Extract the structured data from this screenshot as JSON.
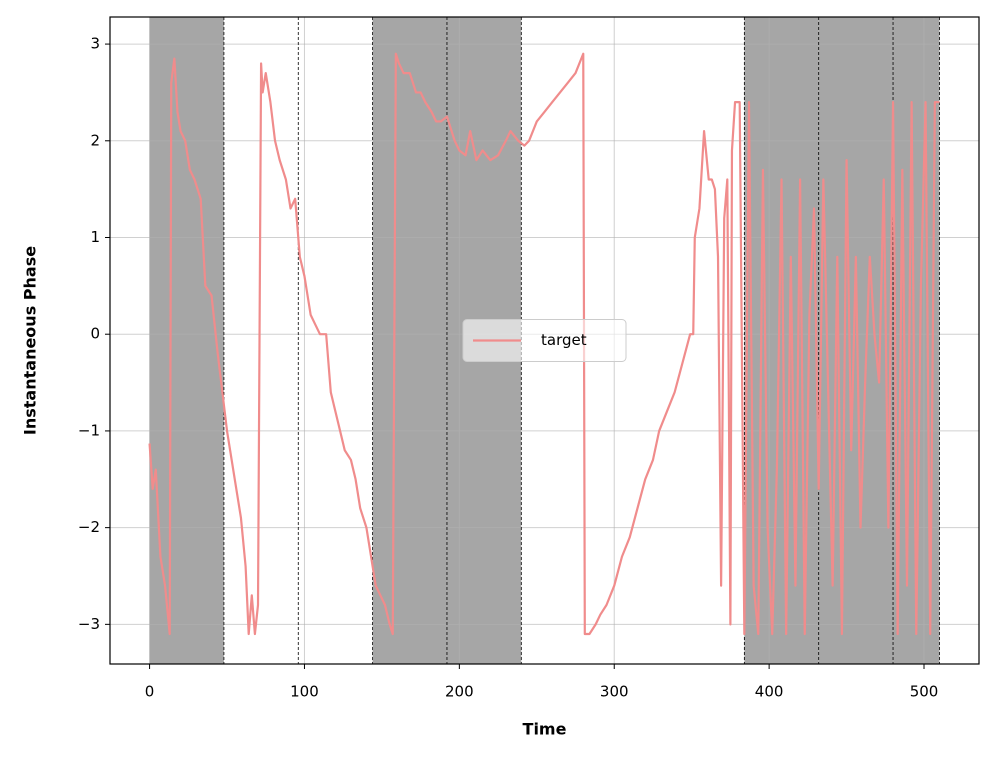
{
  "chart_data": {
    "type": "line",
    "xlabel": "Time",
    "ylabel": "Instantaneous Phase",
    "xlim": [
      -25.55,
      535.5
    ],
    "ylim": [
      -3.41,
      3.28
    ],
    "xticks": [
      0,
      100,
      200,
      300,
      400,
      500
    ],
    "yticks": [
      {
        "value": -3,
        "label": "−3"
      },
      {
        "value": -2,
        "label": "−2"
      },
      {
        "value": -1,
        "label": "−1"
      },
      0,
      1,
      2,
      3
    ],
    "grid": true,
    "legend": "center",
    "shaded_spans": [
      [
        0,
        48
      ],
      [
        144,
        192
      ],
      [
        192,
        240
      ],
      [
        384,
        432
      ],
      [
        432,
        480
      ],
      [
        480,
        510
      ]
    ],
    "shade_color": "#a6a6a6",
    "vlines": [
      48,
      96,
      144,
      192,
      240,
      384,
      432,
      480,
      510
    ],
    "x": [
      0,
      2,
      4,
      7,
      10,
      13,
      14,
      16,
      18,
      20,
      23,
      26,
      29,
      33,
      36,
      40,
      44,
      47,
      50,
      52,
      55,
      59,
      62,
      64,
      66,
      68,
      70,
      72,
      73,
      75,
      78,
      81,
      84,
      88,
      91,
      94,
      97,
      100,
      104,
      107,
      110,
      114,
      117,
      120,
      123,
      126,
      130,
      133,
      136,
      140,
      142,
      146,
      149,
      152,
      155,
      157,
      159,
      161,
      164,
      168,
      172,
      175,
      178,
      182,
      185,
      188,
      192,
      197,
      200,
      204,
      207,
      211,
      215,
      220,
      225,
      230,
      233,
      238,
      242,
      245,
      250,
      255,
      260,
      265,
      270,
      275,
      280,
      281,
      284,
      288,
      291,
      295,
      300,
      305,
      310,
      315,
      320,
      325,
      329,
      334,
      339,
      344,
      349,
      351,
      352,
      355,
      358,
      361,
      363,
      365,
      367,
      369,
      371,
      373,
      375,
      376,
      378,
      379,
      381,
      384,
      387,
      390,
      393,
      396,
      399,
      402,
      405,
      408,
      411,
      414,
      417,
      420,
      423,
      426,
      429,
      432,
      435,
      438,
      441,
      444,
      447,
      450,
      453,
      456,
      459,
      462,
      465,
      468,
      471,
      474,
      477,
      480,
      483,
      486,
      489,
      492,
      495,
      498,
      501,
      504,
      507,
      510
    ],
    "series": [
      {
        "name": "target",
        "color": "#f08c8c",
        "values": [
          -1.13,
          -1.6,
          -1.4,
          -2.3,
          -2.6,
          -3.1,
          2.6,
          2.85,
          2.3,
          2.1,
          2.0,
          1.7,
          1.6,
          1.4,
          0.5,
          0.4,
          -0.2,
          -0.6,
          -1.0,
          -1.2,
          -1.5,
          -1.9,
          -2.4,
          -3.1,
          -2.7,
          -3.1,
          -2.8,
          2.8,
          2.5,
          2.7,
          2.4,
          2.0,
          1.8,
          1.6,
          1.3,
          1.4,
          0.8,
          0.6,
          0.2,
          0.1,
          0.0,
          0.0,
          -0.6,
          -0.8,
          -1.0,
          -1.2,
          -1.3,
          -1.5,
          -1.8,
          -2.0,
          -2.2,
          -2.6,
          -2.7,
          -2.8,
          -3.0,
          -3.1,
          2.9,
          2.8,
          2.7,
          2.7,
          2.5,
          2.5,
          2.4,
          2.3,
          2.2,
          2.2,
          2.25,
          2.0,
          1.9,
          1.85,
          2.1,
          1.8,
          1.9,
          1.8,
          1.85,
          2.0,
          2.1,
          2.0,
          1.95,
          2.0,
          2.2,
          2.3,
          2.4,
          2.5,
          2.6,
          2.7,
          2.9,
          -3.1,
          -3.1,
          -3.0,
          -2.9,
          -2.8,
          -2.6,
          -2.3,
          -2.1,
          -1.8,
          -1.5,
          -1.3,
          -1.0,
          -0.8,
          -0.6,
          -0.3,
          0.0,
          0.0,
          1.0,
          1.3,
          2.1,
          1.6,
          1.6,
          1.5,
          0.8,
          -2.6,
          1.2,
          1.6,
          -3.0,
          1.9,
          2.4,
          2.4,
          2.4,
          -3.1,
          2.4,
          -2.6,
          -3.1,
          1.7,
          -2.0,
          -3.1,
          -1.4,
          1.6,
          -3.1,
          0.8,
          -2.6,
          1.6,
          -3.1,
          0.2,
          1.3,
          -1.6,
          1.6,
          -0.5,
          -2.6,
          0.8,
          -3.1,
          1.8,
          -1.2,
          0.8,
          -2.0,
          -0.5,
          0.8,
          0.0,
          -0.5,
          1.6,
          -2.0,
          2.4,
          -3.1,
          1.7,
          -2.6,
          2.4,
          -3.1,
          0.5,
          2.4,
          -3.1,
          2.4,
          2.4
        ]
      }
    ]
  }
}
